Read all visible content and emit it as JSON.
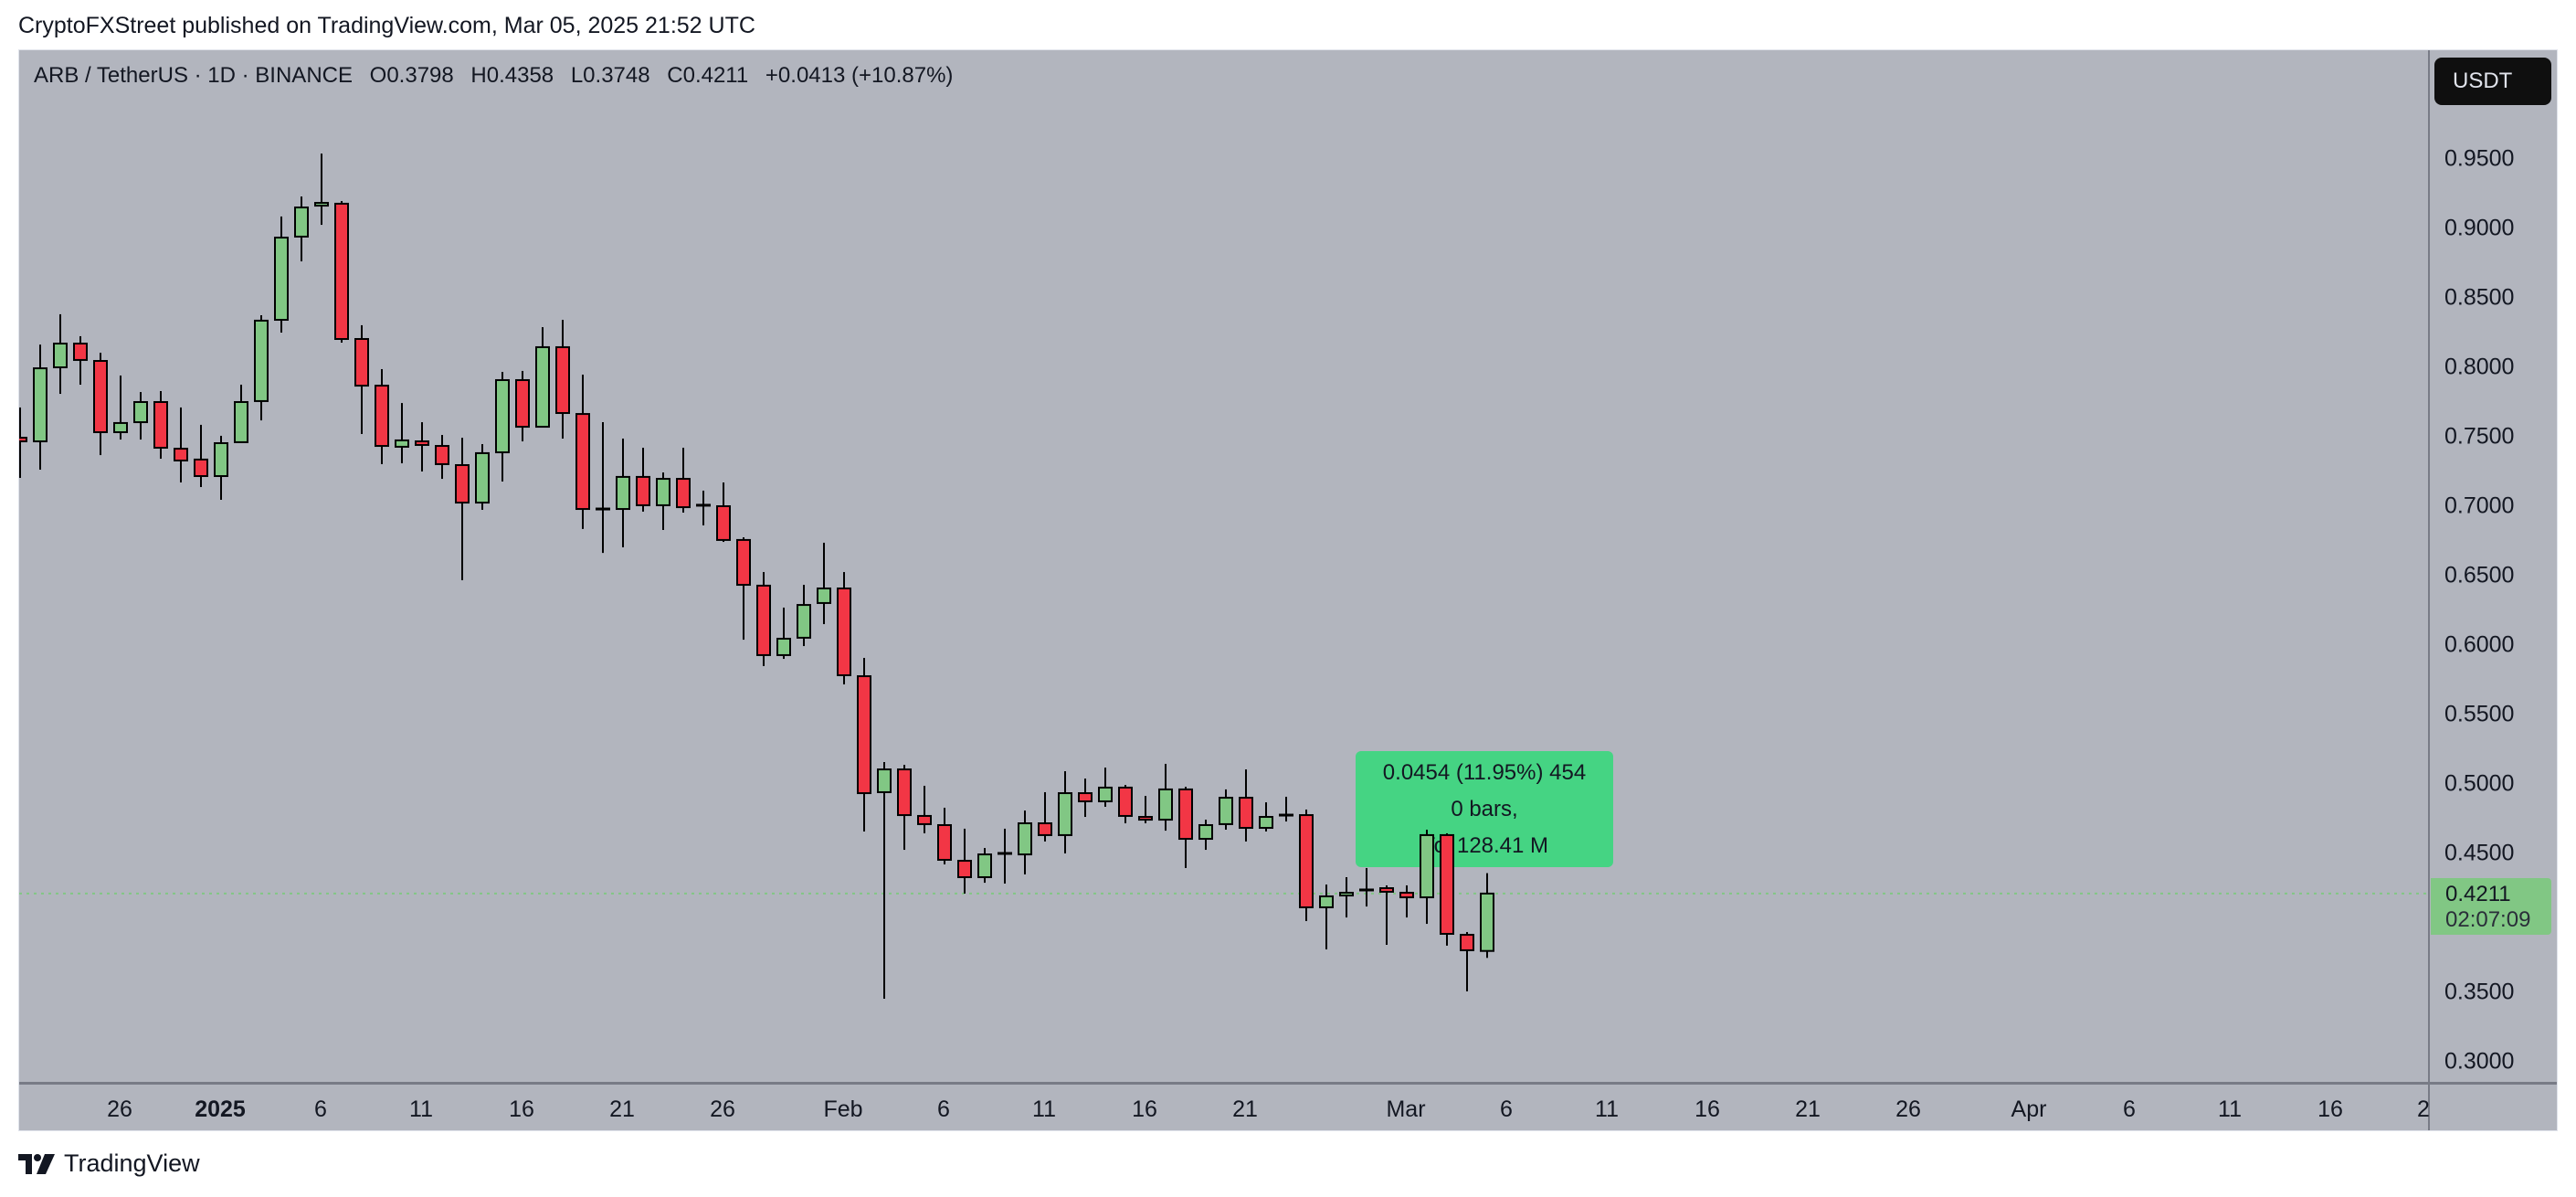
{
  "header": {
    "publish_line": "CryptoFXStreet published on TradingView.com, Mar 05, 2025 21:52 UTC"
  },
  "legend": {
    "symbol": "ARB / TetherUS · 1D · BINANCE",
    "open": "O0.3798",
    "high": "H0.4358",
    "low": "L0.3748",
    "close": "C0.4211",
    "change": "+0.0413 (+10.87%)"
  },
  "currency_button": {
    "label": "USDT"
  },
  "last_price": {
    "value": "0.4211",
    "countdown": "02:07:09"
  },
  "measure_tooltip": {
    "line1": "0.0454 (11.95%) 454",
    "line2": "0 bars,",
    "line3": "Vol 128.41 M"
  },
  "footer": {
    "brand": "TradingView"
  },
  "colors": {
    "background": "#B2B5BE",
    "up_candle": "#81C784",
    "down_candle": "#F23645",
    "wick": "#000000",
    "measure_box": "#45D483",
    "last_price_line": "#81C784"
  },
  "price_axis": {
    "ticks": [
      "0.9500",
      "0.9000",
      "0.8500",
      "0.8000",
      "0.7500",
      "0.7000",
      "0.6500",
      "0.6000",
      "0.5500",
      "0.5000",
      "0.4500",
      "0.3500",
      "0.3000"
    ]
  },
  "time_axis": {
    "ticks": [
      {
        "label": "26",
        "bold": false
      },
      {
        "label": "2025",
        "bold": true
      },
      {
        "label": "6",
        "bold": false
      },
      {
        "label": "11",
        "bold": false
      },
      {
        "label": "16",
        "bold": false
      },
      {
        "label": "21",
        "bold": false
      },
      {
        "label": "26",
        "bold": false
      },
      {
        "label": "Feb",
        "bold": false
      },
      {
        "label": "6",
        "bold": false
      },
      {
        "label": "11",
        "bold": false
      },
      {
        "label": "16",
        "bold": false
      },
      {
        "label": "21",
        "bold": false
      },
      {
        "label": "Mar",
        "bold": false
      },
      {
        "label": "6",
        "bold": false
      },
      {
        "label": "11",
        "bold": false
      },
      {
        "label": "16",
        "bold": false
      },
      {
        "label": "21",
        "bold": false
      },
      {
        "label": "26",
        "bold": false
      },
      {
        "label": "Apr",
        "bold": false
      },
      {
        "label": "6",
        "bold": false
      },
      {
        "label": "11",
        "bold": false
      },
      {
        "label": "16",
        "bold": false
      },
      {
        "label": "2",
        "bold": false
      }
    ]
  },
  "chart_data": {
    "type": "candlestick",
    "title": "ARB / TetherUS · 1D · BINANCE",
    "xlabel": "",
    "ylabel": "USDT",
    "ylim": [
      0.28,
      0.98
    ],
    "grid": false,
    "legend_position": "top-left",
    "x_tick_labels": [
      "26",
      "2025",
      "6",
      "11",
      "16",
      "21",
      "26",
      "Feb",
      "6",
      "11",
      "16",
      "21",
      "Mar",
      "6",
      "11",
      "16",
      "21",
      "26",
      "Apr",
      "6",
      "11",
      "16",
      "2"
    ],
    "y_tick_labels": [
      "0.9500",
      "0.9000",
      "0.8500",
      "0.8000",
      "0.7500",
      "0.7000",
      "0.6500",
      "0.6000",
      "0.5500",
      "0.5000",
      "0.4500",
      "0.3500",
      "0.3000"
    ],
    "annotations": [
      {
        "type": "price-range-measure",
        "text": [
          "0.0454 (11.95%) 454",
          "0 bars,",
          "Vol 128.41 M"
        ]
      },
      {
        "type": "last-price",
        "value": 0.4211,
        "countdown": "02:07:09"
      }
    ],
    "candles": [
      {
        "date": "2024-12-22",
        "o": 0.7493,
        "h": 0.7711,
        "l": 0.7204,
        "c": 0.7467
      },
      {
        "date": "2024-12-23",
        "o": 0.7467,
        "h": 0.8164,
        "l": 0.7263,
        "c": 0.7993
      },
      {
        "date": "2024-12-24",
        "o": 0.8,
        "h": 0.8382,
        "l": 0.7809,
        "c": 0.8171
      },
      {
        "date": "2024-12-25",
        "o": 0.8171,
        "h": 0.8224,
        "l": 0.7875,
        "c": 0.8053
      },
      {
        "date": "2024-12-26",
        "o": 0.8046,
        "h": 0.8105,
        "l": 0.7368,
        "c": 0.7533
      },
      {
        "date": "2024-12-27",
        "o": 0.7533,
        "h": 0.7941,
        "l": 0.748,
        "c": 0.7599
      },
      {
        "date": "2024-12-28",
        "o": 0.7605,
        "h": 0.7822,
        "l": 0.748,
        "c": 0.775
      },
      {
        "date": "2024-12-29",
        "o": 0.775,
        "h": 0.7829,
        "l": 0.7342,
        "c": 0.7421
      },
      {
        "date": "2024-12-30",
        "o": 0.7414,
        "h": 0.7711,
        "l": 0.7171,
        "c": 0.7329
      },
      {
        "date": "2024-12-31",
        "o": 0.7336,
        "h": 0.7586,
        "l": 0.7138,
        "c": 0.7217
      },
      {
        "date": "2025-01-01",
        "o": 0.7217,
        "h": 0.7507,
        "l": 0.7046,
        "c": 0.7454
      },
      {
        "date": "2025-01-02",
        "o": 0.7461,
        "h": 0.7875,
        "l": 0.7461,
        "c": 0.775
      },
      {
        "date": "2025-01-03",
        "o": 0.7757,
        "h": 0.8375,
        "l": 0.7618,
        "c": 0.8336
      },
      {
        "date": "2025-01-04",
        "o": 0.8342,
        "h": 0.9086,
        "l": 0.825,
        "c": 0.8934
      },
      {
        "date": "2025-01-05",
        "o": 0.8941,
        "h": 0.923,
        "l": 0.8763,
        "c": 0.9151
      },
      {
        "date": "2025-01-06",
        "o": 0.9164,
        "h": 0.9539,
        "l": 0.9026,
        "c": 0.9184
      },
      {
        "date": "2025-01-07",
        "o": 0.9178,
        "h": 0.9197,
        "l": 0.8178,
        "c": 0.8204
      },
      {
        "date": "2025-01-08",
        "o": 0.8204,
        "h": 0.8303,
        "l": 0.752,
        "c": 0.7868
      },
      {
        "date": "2025-01-09",
        "o": 0.7868,
        "h": 0.7987,
        "l": 0.7303,
        "c": 0.7434
      },
      {
        "date": "2025-01-10",
        "o": 0.7428,
        "h": 0.7743,
        "l": 0.7309,
        "c": 0.7474
      },
      {
        "date": "2025-01-11",
        "o": 0.7467,
        "h": 0.7605,
        "l": 0.725,
        "c": 0.7441
      },
      {
        "date": "2025-01-12",
        "o": 0.7434,
        "h": 0.7513,
        "l": 0.7197,
        "c": 0.7303
      },
      {
        "date": "2025-01-13",
        "o": 0.7296,
        "h": 0.7493,
        "l": 0.6467,
        "c": 0.7026
      },
      {
        "date": "2025-01-14",
        "o": 0.7026,
        "h": 0.7447,
        "l": 0.6974,
        "c": 0.7382
      },
      {
        "date": "2025-01-15",
        "o": 0.7388,
        "h": 0.7967,
        "l": 0.7178,
        "c": 0.7908
      },
      {
        "date": "2025-01-16",
        "o": 0.7908,
        "h": 0.7974,
        "l": 0.7467,
        "c": 0.7572
      },
      {
        "date": "2025-01-17",
        "o": 0.7572,
        "h": 0.8289,
        "l": 0.7572,
        "c": 0.8145
      },
      {
        "date": "2025-01-18",
        "o": 0.8145,
        "h": 0.8342,
        "l": 0.7487,
        "c": 0.7671
      },
      {
        "date": "2025-01-19",
        "o": 0.7664,
        "h": 0.7947,
        "l": 0.6836,
        "c": 0.698
      },
      {
        "date": "2025-01-20",
        "o": 0.698,
        "h": 0.7605,
        "l": 0.6664,
        "c": 0.698
      },
      {
        "date": "2025-01-21",
        "o": 0.698,
        "h": 0.7487,
        "l": 0.6704,
        "c": 0.7211
      },
      {
        "date": "2025-01-22",
        "o": 0.7211,
        "h": 0.7421,
        "l": 0.6961,
        "c": 0.7007
      },
      {
        "date": "2025-01-23",
        "o": 0.7007,
        "h": 0.7243,
        "l": 0.6829,
        "c": 0.7197
      },
      {
        "date": "2025-01-24",
        "o": 0.7197,
        "h": 0.7421,
        "l": 0.6954,
        "c": 0.6993
      },
      {
        "date": "2025-01-25",
        "o": 0.7007,
        "h": 0.7112,
        "l": 0.6862,
        "c": 0.7007
      },
      {
        "date": "2025-01-26",
        "o": 0.7,
        "h": 0.7171,
        "l": 0.6743,
        "c": 0.6757
      },
      {
        "date": "2025-01-27",
        "o": 0.6757,
        "h": 0.6776,
        "l": 0.6039,
        "c": 0.6434
      },
      {
        "date": "2025-01-28",
        "o": 0.6428,
        "h": 0.6526,
        "l": 0.5849,
        "c": 0.5928
      },
      {
        "date": "2025-01-29",
        "o": 0.5928,
        "h": 0.627,
        "l": 0.5901,
        "c": 0.6046
      },
      {
        "date": "2025-01-30",
        "o": 0.6053,
        "h": 0.6434,
        "l": 0.5993,
        "c": 0.6289
      },
      {
        "date": "2025-01-31",
        "o": 0.6303,
        "h": 0.6737,
        "l": 0.6151,
        "c": 0.6408
      },
      {
        "date": "2025-02-01",
        "o": 0.6408,
        "h": 0.6526,
        "l": 0.5717,
        "c": 0.5783
      },
      {
        "date": "2025-02-02",
        "o": 0.5776,
        "h": 0.5908,
        "l": 0.4658,
        "c": 0.4934
      },
      {
        "date": "2025-02-03",
        "o": 0.4941,
        "h": 0.5158,
        "l": 0.3454,
        "c": 0.5105
      },
      {
        "date": "2025-02-04",
        "o": 0.5105,
        "h": 0.5138,
        "l": 0.4526,
        "c": 0.4776
      },
      {
        "date": "2025-02-05",
        "o": 0.477,
        "h": 0.4987,
        "l": 0.4645,
        "c": 0.4711
      },
      {
        "date": "2025-02-06",
        "o": 0.4704,
        "h": 0.4829,
        "l": 0.4421,
        "c": 0.4454
      },
      {
        "date": "2025-02-07",
        "o": 0.4447,
        "h": 0.4678,
        "l": 0.4211,
        "c": 0.4329
      },
      {
        "date": "2025-02-08",
        "o": 0.4329,
        "h": 0.4539,
        "l": 0.4289,
        "c": 0.4493
      },
      {
        "date": "2025-02-09",
        "o": 0.45,
        "h": 0.4678,
        "l": 0.4283,
        "c": 0.45
      },
      {
        "date": "2025-02-10",
        "o": 0.4493,
        "h": 0.4809,
        "l": 0.4349,
        "c": 0.4717
      },
      {
        "date": "2025-02-11",
        "o": 0.4717,
        "h": 0.4941,
        "l": 0.4586,
        "c": 0.4632
      },
      {
        "date": "2025-02-12",
        "o": 0.4632,
        "h": 0.5092,
        "l": 0.45,
        "c": 0.4934
      },
      {
        "date": "2025-02-13",
        "o": 0.4934,
        "h": 0.5039,
        "l": 0.4763,
        "c": 0.4875
      },
      {
        "date": "2025-02-14",
        "o": 0.4875,
        "h": 0.5118,
        "l": 0.4836,
        "c": 0.4974
      },
      {
        "date": "2025-02-15",
        "o": 0.4974,
        "h": 0.4993,
        "l": 0.4717,
        "c": 0.477
      },
      {
        "date": "2025-02-16",
        "o": 0.4763,
        "h": 0.4914,
        "l": 0.4717,
        "c": 0.4743
      },
      {
        "date": "2025-02-17",
        "o": 0.4743,
        "h": 0.5145,
        "l": 0.4664,
        "c": 0.4961
      },
      {
        "date": "2025-02-18",
        "o": 0.4961,
        "h": 0.498,
        "l": 0.4395,
        "c": 0.4605
      },
      {
        "date": "2025-02-19",
        "o": 0.4605,
        "h": 0.4743,
        "l": 0.4526,
        "c": 0.4704
      },
      {
        "date": "2025-02-20",
        "o": 0.4711,
        "h": 0.4961,
        "l": 0.4671,
        "c": 0.4901
      },
      {
        "date": "2025-02-21",
        "o": 0.4901,
        "h": 0.5105,
        "l": 0.4586,
        "c": 0.4684
      },
      {
        "date": "2025-02-22",
        "o": 0.4684,
        "h": 0.4868,
        "l": 0.4658,
        "c": 0.4763
      },
      {
        "date": "2025-02-23",
        "o": 0.4776,
        "h": 0.4908,
        "l": 0.473,
        "c": 0.4776
      },
      {
        "date": "2025-02-24",
        "o": 0.4776,
        "h": 0.4816,
        "l": 0.4013,
        "c": 0.4112
      },
      {
        "date": "2025-02-25",
        "o": 0.4112,
        "h": 0.4276,
        "l": 0.3809,
        "c": 0.4191
      },
      {
        "date": "2025-02-26",
        "o": 0.4197,
        "h": 0.4329,
        "l": 0.4039,
        "c": 0.4217
      },
      {
        "date": "2025-02-27",
        "o": 0.4237,
        "h": 0.4395,
        "l": 0.4118,
        "c": 0.4237
      },
      {
        "date": "2025-02-28",
        "o": 0.425,
        "h": 0.427,
        "l": 0.3842,
        "c": 0.4224
      },
      {
        "date": "2025-03-01",
        "o": 0.4217,
        "h": 0.427,
        "l": 0.4039,
        "c": 0.4184
      },
      {
        "date": "2025-03-02",
        "o": 0.4184,
        "h": 0.4671,
        "l": 0.3993,
        "c": 0.4632
      },
      {
        "date": "2025-03-03",
        "o": 0.4632,
        "h": 0.4645,
        "l": 0.3836,
        "c": 0.3921
      },
      {
        "date": "2025-03-04",
        "o": 0.3914,
        "h": 0.3934,
        "l": 0.3507,
        "c": 0.3803
      },
      {
        "date": "2025-03-05",
        "o": 0.3798,
        "h": 0.4358,
        "l": 0.3748,
        "c": 0.4211
      }
    ]
  }
}
